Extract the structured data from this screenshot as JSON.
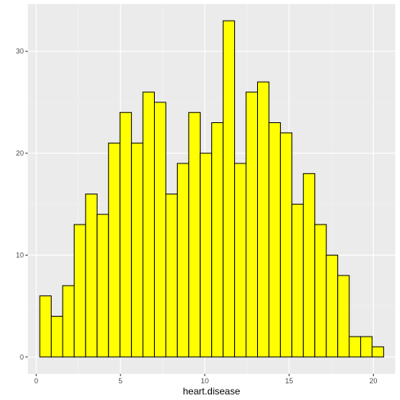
{
  "chart_data": {
    "type": "bar",
    "title": "",
    "xlabel": "heart.disease",
    "ylabel": "",
    "bin_width": 0.68,
    "bins": [
      {
        "x": 0.55,
        "count": 6
      },
      {
        "x": 1.23,
        "count": 4
      },
      {
        "x": 1.91,
        "count": 7
      },
      {
        "x": 2.59,
        "count": 13
      },
      {
        "x": 3.27,
        "count": 16
      },
      {
        "x": 3.95,
        "count": 14
      },
      {
        "x": 4.63,
        "count": 21
      },
      {
        "x": 5.31,
        "count": 24
      },
      {
        "x": 5.99,
        "count": 21
      },
      {
        "x": 6.67,
        "count": 26
      },
      {
        "x": 7.35,
        "count": 25
      },
      {
        "x": 8.03,
        "count": 16
      },
      {
        "x": 8.71,
        "count": 19
      },
      {
        "x": 9.39,
        "count": 24
      },
      {
        "x": 10.07,
        "count": 20
      },
      {
        "x": 10.75,
        "count": 23
      },
      {
        "x": 11.43,
        "count": 33
      },
      {
        "x": 12.11,
        "count": 19
      },
      {
        "x": 12.79,
        "count": 26
      },
      {
        "x": 13.47,
        "count": 27
      },
      {
        "x": 14.15,
        "count": 23
      },
      {
        "x": 14.83,
        "count": 22
      },
      {
        "x": 15.51,
        "count": 15
      },
      {
        "x": 16.19,
        "count": 18
      },
      {
        "x": 16.87,
        "count": 13
      },
      {
        "x": 17.55,
        "count": 10
      },
      {
        "x": 18.23,
        "count": 8
      },
      {
        "x": 18.91,
        "count": 2
      },
      {
        "x": 19.59,
        "count": 2
      },
      {
        "x": 20.27,
        "count": 1
      }
    ],
    "xlim": [
      -0.5,
      21.3
    ],
    "ylim": [
      -1.65,
      34.65
    ],
    "x_ticks": [
      0,
      5,
      10,
      15,
      20
    ],
    "y_ticks": [
      0,
      10,
      20,
      30
    ],
    "grid": true,
    "colors": {
      "bar_fill": "#ffff00",
      "bar_stroke": "#000000",
      "panel_background": "#ebebeb",
      "grid_major": "#ffffff",
      "grid_minor": "#f5f5f5"
    }
  }
}
